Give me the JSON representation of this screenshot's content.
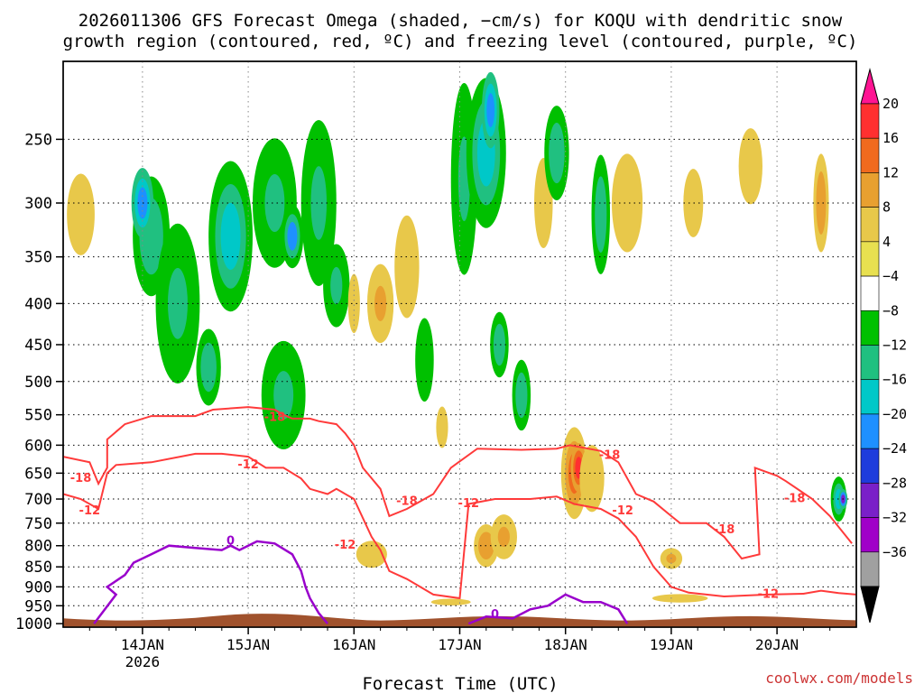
{
  "chart_data": {
    "type": "heatmap",
    "title_line1": "2026011306 GFS Forecast Omega (shaded, −cm/s) for KOQU with dendritic snow",
    "title_line2": "growth region (contoured, red, ºC) and freezing level (contoured, purple, ºC)",
    "xlabel": "Forecast Time (UTC)",
    "credit": "coolwx.com/models",
    "x_days": [
      {
        "label": "14JAN",
        "sub": "2026",
        "hour": 18
      },
      {
        "label": "15JAN",
        "sub": "",
        "hour": 42
      },
      {
        "label": "16JAN",
        "sub": "",
        "hour": 66
      },
      {
        "label": "17JAN",
        "sub": "",
        "hour": 90
      },
      {
        "label": "18JAN",
        "sub": "",
        "hour": 114
      },
      {
        "label": "19JAN",
        "sub": "",
        "hour": 138
      },
      {
        "label": "20JAN",
        "sub": "",
        "hour": 162
      }
    ],
    "xlim_hours": [
      0,
      180
    ],
    "ylevels": [
      1000,
      950,
      900,
      850,
      800,
      750,
      700,
      650,
      600,
      550,
      500,
      450,
      400,
      350,
      300,
      250
    ],
    "ylabels": [
      "1000",
      "950",
      "900",
      "850",
      "800",
      "750",
      "700",
      "650",
      "600",
      "550",
      "500",
      "450",
      "400",
      "350",
      "300",
      "250"
    ],
    "ylim_hpa": [
      1010,
      200
    ],
    "colorbar": {
      "labels": [
        "20",
        "16",
        "12",
        "8",
        "4",
        "−4",
        "−8",
        "−12",
        "−16",
        "−20",
        "−24",
        "−28",
        "−32",
        "−36"
      ],
      "colors": [
        "#ff1493",
        "#ff3030",
        "#f06a1e",
        "#e8a030",
        "#e8c84a",
        "#e8e050",
        "#ffffff",
        "#00c000",
        "#20c080",
        "#00c8c8",
        "#1e90ff",
        "#1e3cdc",
        "#7a20c8",
        "#a000c8",
        "#a0a0a0",
        "#000000"
      ]
    },
    "omega_blobs": [
      {
        "t": 4,
        "p": 310,
        "w": 7,
        "h": 160,
        "v": 5
      },
      {
        "t": 20,
        "p": 330,
        "w": 6,
        "h": 160,
        "v": -8
      },
      {
        "t": 18,
        "p": 300,
        "w": 2.5,
        "h": 60,
        "v": -18
      },
      {
        "t": 26,
        "p": 400,
        "w": 5,
        "h": 180,
        "v": -9
      },
      {
        "t": 33,
        "p": 480,
        "w": 4,
        "h": 150,
        "v": -8
      },
      {
        "t": 38,
        "p": 330,
        "w": 5,
        "h": 140,
        "v": -12
      },
      {
        "t": 48,
        "p": 300,
        "w": 5,
        "h": 110,
        "v": -10
      },
      {
        "t": 52,
        "p": 330,
        "w": 2.5,
        "h": 60,
        "v": -16
      },
      {
        "t": 50,
        "p": 520,
        "w": 5,
        "h": 160,
        "v": -9
      },
      {
        "t": 58,
        "p": 300,
        "w": 4,
        "h": 140,
        "v": -10
      },
      {
        "t": 62,
        "p": 380,
        "w": 3,
        "h": 90,
        "v": -9
      },
      {
        "t": 66,
        "p": 400,
        "w": 3,
        "h": 150,
        "v": 5
      },
      {
        "t": 72,
        "p": 400,
        "w": 3,
        "h": 90,
        "v": 10
      },
      {
        "t": 70,
        "p": 820,
        "w": 5,
        "h": 90,
        "v": 6
      },
      {
        "t": 78,
        "p": 360,
        "w": 4,
        "h": 150,
        "v": 7
      },
      {
        "t": 82,
        "p": 470,
        "w": 3,
        "h": 160,
        "v": -7
      },
      {
        "t": 86,
        "p": 570,
        "w": 3,
        "h": 150,
        "v": 5
      },
      {
        "t": 91,
        "p": 280,
        "w": 3,
        "h": 150,
        "v": -9
      },
      {
        "t": 96,
        "p": 260,
        "w": 4.5,
        "h": 110,
        "v": -12
      },
      {
        "t": 97,
        "p": 230,
        "w": 2,
        "h": 50,
        "v": -18
      },
      {
        "t": 99,
        "p": 450,
        "w": 3,
        "h": 120,
        "v": -8
      },
      {
        "t": 96,
        "p": 800,
        "w": 4,
        "h": 140,
        "v": 8
      },
      {
        "t": 100,
        "p": 780,
        "w": 3,
        "h": 100,
        "v": 11
      },
      {
        "t": 104,
        "p": 520,
        "w": 3,
        "h": 150,
        "v": -8
      },
      {
        "t": 109,
        "p": 300,
        "w": 3,
        "h": 110,
        "v": 7
      },
      {
        "t": 112,
        "p": 260,
        "w": 4,
        "h": 100,
        "v": -8
      },
      {
        "t": 116,
        "p": 650,
        "w": 3,
        "h": 170,
        "v": 12
      },
      {
        "t": 117,
        "p": 640,
        "w": 1.8,
        "h": 90,
        "v": 19
      },
      {
        "t": 120,
        "p": 660,
        "w": 4,
        "h": 180,
        "v": 7
      },
      {
        "t": 122,
        "p": 310,
        "w": 3,
        "h": 150,
        "v": -8
      },
      {
        "t": 128,
        "p": 300,
        "w": 5,
        "h": 120,
        "v": 6
      },
      {
        "t": 138,
        "p": 830,
        "w": 2.5,
        "h": 50,
        "v": 9
      },
      {
        "t": 143,
        "p": 300,
        "w": 5,
        "h": 130,
        "v": 5
      },
      {
        "t": 156,
        "p": 270,
        "w": 6,
        "h": 130,
        "v": 5
      },
      {
        "t": 172,
        "p": 300,
        "w": 2.5,
        "h": 120,
        "v": 8
      },
      {
        "t": 176,
        "p": 700,
        "w": 1.8,
        "h": 90,
        "v": -14
      },
      {
        "t": 177,
        "p": 700,
        "w": 1,
        "h": 40,
        "v": -26
      },
      {
        "t": 140,
        "p": 930,
        "w": 14,
        "h": 50,
        "v": 5
      },
      {
        "t": 88,
        "p": 940,
        "w": 10,
        "h": 40,
        "v": 5
      }
    ],
    "dgz_contours": [
      {
        "label": "-18",
        "label_at": [
          51,
          560
        ],
        "points": [
          [
            0,
            620
          ],
          [
            6,
            630
          ],
          [
            8,
            670
          ],
          [
            10,
            640
          ],
          [
            10,
            590
          ],
          [
            14,
            565
          ],
          [
            20,
            552
          ],
          [
            30,
            552
          ],
          [
            34,
            542
          ],
          [
            42,
            538
          ],
          [
            48,
            542
          ],
          [
            50,
            550
          ],
          [
            52,
            556
          ],
          [
            56,
            556
          ],
          [
            58,
            560
          ],
          [
            62,
            565
          ],
          [
            64,
            580
          ],
          [
            66,
            600
          ],
          [
            68,
            640
          ],
          [
            72,
            680
          ],
          [
            74,
            735
          ],
          [
            78,
            720
          ],
          [
            84,
            690
          ],
          [
            88,
            640
          ],
          [
            94,
            606
          ],
          [
            104,
            608
          ],
          [
            112,
            606
          ],
          [
            115,
            600
          ],
          [
            122,
            610
          ],
          [
            126,
            630
          ],
          [
            130,
            690
          ],
          [
            134,
            705
          ],
          [
            138,
            735
          ],
          [
            140,
            750
          ],
          [
            146,
            750
          ],
          [
            150,
            780
          ],
          [
            154,
            830
          ],
          [
            158,
            820
          ],
          [
            157,
            640
          ],
          [
            162,
            655
          ],
          [
            164,
            665
          ],
          [
            170,
            700
          ],
          [
            174,
            735
          ],
          [
            179,
            795
          ]
        ]
      },
      {
        "label": "-12",
        "label_at": [
          40,
          630
        ],
        "points": [
          [
            0,
            690
          ],
          [
            4,
            700
          ],
          [
            8,
            720
          ],
          [
            10,
            650
          ],
          [
            12,
            635
          ],
          [
            20,
            630
          ],
          [
            30,
            615
          ],
          [
            36,
            615
          ],
          [
            42,
            620
          ],
          [
            46,
            640
          ],
          [
            50,
            640
          ],
          [
            54,
            660
          ],
          [
            56,
            680
          ],
          [
            60,
            690
          ],
          [
            62,
            680
          ],
          [
            66,
            700
          ],
          [
            70,
            780
          ],
          [
            72,
            810
          ],
          [
            74,
            860
          ],
          [
            78,
            880
          ],
          [
            84,
            920
          ],
          [
            90,
            930
          ],
          [
            92,
            710
          ],
          [
            98,
            700
          ],
          [
            106,
            700
          ],
          [
            112,
            695
          ],
          [
            116,
            710
          ],
          [
            122,
            720
          ],
          [
            126,
            740
          ],
          [
            130,
            780
          ],
          [
            134,
            850
          ],
          [
            138,
            900
          ],
          [
            142,
            915
          ],
          [
            150,
            925
          ],
          [
            160,
            920
          ],
          [
            168,
            918
          ],
          [
            172,
            910
          ],
          [
            176,
            916
          ],
          [
            180,
            920
          ]
        ]
      }
    ],
    "dgz_labels": [
      {
        "text": "-18",
        "t": 4,
        "p": 660
      },
      {
        "text": "-12",
        "t": 6,
        "p": 725
      },
      {
        "text": "-18",
        "t": 48,
        "p": 555
      },
      {
        "text": "-12",
        "t": 42,
        "p": 635
      },
      {
        "text": "-12",
        "t": 64,
        "p": 800
      },
      {
        "text": "-18",
        "t": 78,
        "p": 705
      },
      {
        "text": "-12",
        "t": 92,
        "p": 710
      },
      {
        "text": "-18",
        "t": 124,
        "p": 618
      },
      {
        "text": "-12",
        "t": 127,
        "p": 725
      },
      {
        "text": "-18",
        "t": 150,
        "p": 765
      },
      {
        "text": "-18",
        "t": 166,
        "p": 700
      },
      {
        "text": "-12",
        "t": 160,
        "p": 920
      }
    ],
    "freezing_level": {
      "label": "0",
      "points": [
        [
          7,
          1000
        ],
        [
          12,
          920
        ],
        [
          10,
          900
        ],
        [
          14,
          870
        ],
        [
          16,
          840
        ],
        [
          20,
          820
        ],
        [
          24,
          800
        ],
        [
          30,
          805
        ],
        [
          36,
          810
        ],
        [
          38,
          800
        ],
        [
          40,
          810
        ],
        [
          42,
          800
        ],
        [
          44,
          790
        ],
        [
          48,
          795
        ],
        [
          52,
          820
        ],
        [
          54,
          860
        ],
        [
          55,
          900
        ],
        [
          56,
          930
        ],
        [
          58,
          970
        ],
        [
          60,
          1000
        ]
      ],
      "points2": [
        [
          92,
          1000
        ],
        [
          96,
          980
        ],
        [
          102,
          985
        ],
        [
          106,
          960
        ],
        [
          110,
          950
        ],
        [
          114,
          920
        ],
        [
          118,
          940
        ],
        [
          122,
          940
        ],
        [
          126,
          960
        ],
        [
          128,
          1000
        ]
      ],
      "labels": [
        {
          "text": "0",
          "t": 38,
          "p": 790
        },
        {
          "text": "0",
          "t": 98,
          "p": 975
        }
      ]
    },
    "terrain_top_hpa": 985
  }
}
